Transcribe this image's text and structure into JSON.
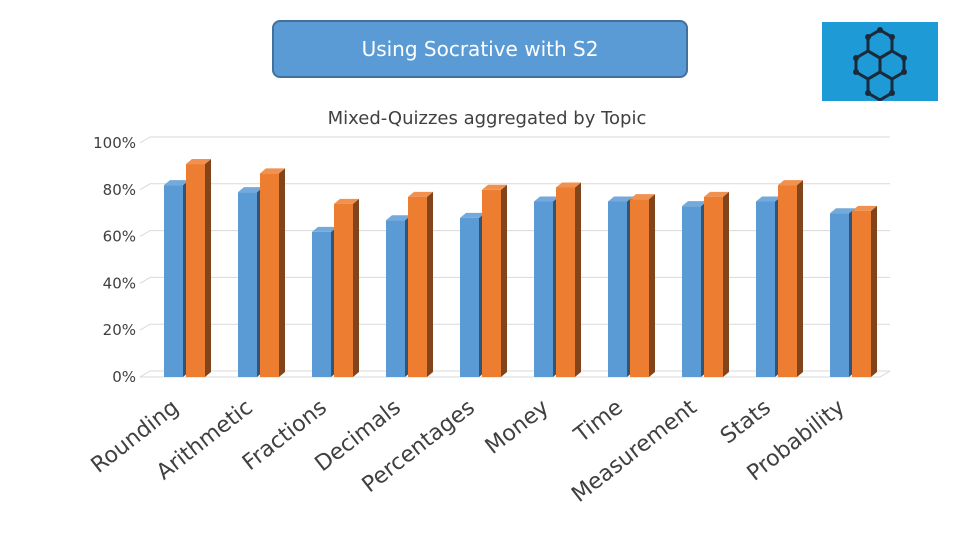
{
  "slide": {
    "title": "Using Socrative with S2",
    "logo_icon": "hexagon-molecule-icon",
    "colors": {
      "title_fill": "#5b9bd5",
      "logo_bg": "#1e9bd7"
    }
  },
  "chart_data": {
    "type": "bar",
    "title": "Mixed-Quizzes aggregated by Topic",
    "categories": [
      "Rounding",
      "Arithmetic",
      "Fractions",
      "Decimals",
      "Percentages",
      "Money",
      "Time",
      "Measurement",
      "Stats",
      "Probability"
    ],
    "series": [
      {
        "values": [
          82,
          79,
          62,
          67,
          68,
          75,
          75,
          73,
          75,
          70
        ],
        "color": "#5b9bd5"
      },
      {
        "values": [
          91,
          87,
          74,
          77,
          80,
          81,
          76,
          77,
          82,
          71
        ],
        "color": "#ed7d31"
      }
    ],
    "ylim": [
      0,
      100
    ],
    "yticks": [
      "0%",
      "20%",
      "40%",
      "60%",
      "80%",
      "100%"
    ],
    "grid": true,
    "style": "3d-clustered-column"
  }
}
